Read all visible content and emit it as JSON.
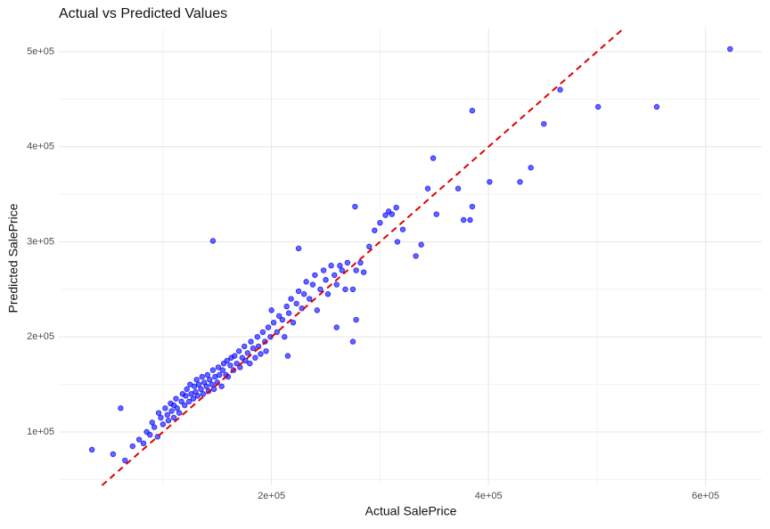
{
  "chart_data": {
    "type": "scatter",
    "title": "Actual vs Predicted Values",
    "x_label": "Actual SalePrice",
    "y_label": "Predicted SalePrice",
    "color": "#0000ff",
    "x": [
      622600,
      555000,
      501000,
      466000,
      451000,
      385000,
      439000,
      429000,
      401000,
      349000,
      146000,
      277000,
      275000,
      278000,
      383000,
      385000,
      377000,
      372000,
      344000,
      352000,
      338000,
      333000,
      315000,
      311000,
      321000,
      316000,
      34500,
      54000,
      61000,
      65000,
      72000,
      78000,
      82000,
      85000,
      88000,
      90000,
      92000,
      95000,
      96000,
      98000,
      100000,
      102000,
      104000,
      105000,
      107000,
      108000,
      110000,
      110000,
      112000,
      113000,
      115000,
      117000,
      118000,
      120000,
      121000,
      122000,
      124000,
      125000,
      126000,
      128000,
      129000,
      130000,
      131000,
      132000,
      133000,
      135000,
      136000,
      137000,
      138000,
      140000,
      141000,
      142000,
      143000,
      145000,
      146000,
      147000,
      148000,
      150000,
      151000,
      152000,
      154000,
      155000,
      156000,
      158000,
      159000,
      160000,
      162000,
      163000,
      165000,
      166000,
      168000,
      170000,
      171000,
      173000,
      175000,
      176000,
      178000,
      180000,
      181000,
      183000,
      185000,
      187000,
      188000,
      190000,
      192000,
      194000,
      195000,
      197000,
      199000,
      200000,
      202000,
      205000,
      207000,
      210000,
      212000,
      214000,
      216000,
      218000,
      220000,
      223000,
      225000,
      228000,
      230000,
      232000,
      235000,
      238000,
      240000,
      242000,
      245000,
      248000,
      250000,
      252000,
      255000,
      258000,
      260000,
      263000,
      265000,
      268000,
      270000,
      275000,
      278000,
      282000,
      285000,
      290000,
      295000,
      300000,
      305000,
      308000,
      225000,
      215000,
      260000
    ],
    "values": [
      502800,
      442000,
      442000,
      460000,
      424000,
      438000,
      378000,
      363000,
      363000,
      388000,
      301000,
      337000,
      195000,
      218000,
      323000,
      337000,
      323000,
      356000,
      356000,
      329000,
      297000,
      285000,
      336000,
      329000,
      313000,
      300000,
      81300,
      76600,
      125000,
      70000,
      85000,
      92000,
      88000,
      100000,
      97000,
      110000,
      105000,
      95000,
      120000,
      115000,
      108000,
      125000,
      118000,
      112000,
      130000,
      122000,
      128000,
      115000,
      135000,
      125000,
      120000,
      132000,
      140000,
      128000,
      138000,
      145000,
      132000,
      150000,
      140000,
      135000,
      148000,
      142000,
      155000,
      138000,
      150000,
      145000,
      158000,
      140000,
      152000,
      148000,
      160000,
      143000,
      155000,
      150000,
      165000,
      145000,
      158000,
      152000,
      168000,
      160000,
      148000,
      165000,
      172000,
      160000,
      175000,
      158000,
      170000,
      178000,
      165000,
      180000,
      172000,
      185000,
      168000,
      178000,
      190000,
      175000,
      183000,
      172000,
      195000,
      188000,
      178000,
      200000,
      190000,
      182000,
      205000,
      195000,
      185000,
      210000,
      200000,
      228000,
      215000,
      205000,
      222000,
      218000,
      200000,
      232000,
      225000,
      240000,
      215000,
      235000,
      248000,
      230000,
      245000,
      258000,
      240000,
      255000,
      265000,
      228000,
      250000,
      270000,
      260000,
      245000,
      275000,
      265000,
      255000,
      275000,
      270000,
      250000,
      278000,
      250000,
      270000,
      278000,
      268000,
      295000,
      312000,
      320000,
      328000,
      332000,
      293000,
      180000,
      210000
    ],
    "xlim": [
      4000,
      652000
    ],
    "ylim": [
      43800,
      524400
    ],
    "xticks": [
      {
        "value": 200000,
        "label": "2e+05"
      },
      {
        "value": 400000,
        "label": "4e+05"
      },
      {
        "value": 600000,
        "label": "6e+05"
      }
    ],
    "yticks": [
      {
        "value": 100000,
        "label": "1e+05"
      },
      {
        "value": 200000,
        "label": "2e+05"
      },
      {
        "value": 300000,
        "label": "3e+05"
      },
      {
        "value": 400000,
        "label": "4e+05"
      },
      {
        "value": 500000,
        "label": "5e+05"
      }
    ],
    "x_minor_ticks": [
      100000,
      300000,
      500000
    ],
    "y_minor_ticks": [
      50000,
      150000,
      250000,
      350000,
      450000
    ],
    "grid": true,
    "diagonal": true,
    "diagonal_color": "#e00000"
  }
}
